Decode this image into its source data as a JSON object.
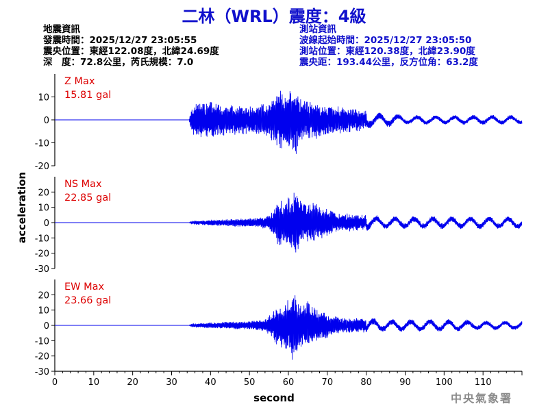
{
  "title": "二林（WRL）震度：4級",
  "quake_info": {
    "heading": "地震資訊",
    "origin_time": "發震時間：2025/12/27 23:05:55",
    "epicenter": "震央位置：東經122.08度，北緯24.69度",
    "depth_magnitude": "深　度：72.8公里，芮氏規模：7.0"
  },
  "station_info": {
    "heading": "測站資訊",
    "wave_start": "波線起始時間：2025/12/27 23:05:50",
    "station_location": "測站位置：東經120.38度，北緯23.90度",
    "distance_azimuth": "震央距：193.44公里，反方位角：63.2度"
  },
  "watermark": "中央氣象署",
  "colors": {
    "trace": "#0000ee",
    "label": "#dd0000",
    "title": "#1010cc",
    "text": "#000000"
  },
  "chart_data": {
    "type": "line",
    "xlabel": "second",
    "ylabel": "acceleration",
    "xlim": [
      0,
      120
    ],
    "xticks": [
      0,
      10,
      20,
      30,
      40,
      50,
      60,
      70,
      80,
      90,
      100,
      110
    ],
    "grid": false,
    "panels": [
      {
        "name": "Z",
        "label": "Z Max",
        "max_value": "15.81 gal",
        "ylim": [
          -20,
          20
        ],
        "yticks": [
          -20,
          -10,
          0,
          10
        ],
        "envelope": {
          "x": [
            0,
            34.5,
            35,
            36,
            40,
            45,
            50,
            55,
            57,
            58,
            59,
            60,
            61,
            62,
            63,
            65,
            68,
            70,
            75,
            78,
            80,
            82,
            84,
            86,
            90,
            95,
            100,
            110,
            120
          ],
          "amp": [
            0,
            0,
            6,
            8,
            8,
            7,
            6,
            8,
            12,
            14,
            12,
            13,
            14,
            15.8,
            11,
            9,
            8,
            7,
            6,
            5,
            4,
            3,
            3,
            3,
            2,
            2,
            2,
            2,
            2
          ]
        }
      },
      {
        "name": "NS",
        "label": "NS Max",
        "max_value": "22.85 gal",
        "ylim": [
          -30,
          30
        ],
        "yticks": [
          -30,
          -20,
          -10,
          0,
          10,
          20
        ],
        "envelope": {
          "x": [
            0,
            34.5,
            35,
            40,
            45,
            50,
            54,
            56,
            57,
            58,
            59,
            60,
            61,
            62,
            63,
            64,
            65,
            66,
            68,
            70,
            73,
            75,
            80,
            85,
            90,
            100,
            110,
            120
          ],
          "amp": [
            0,
            0,
            1,
            2,
            2.5,
            3,
            4,
            8,
            14,
            16,
            13,
            17,
            18,
            22.85,
            16,
            15,
            17,
            14,
            11,
            9,
            6,
            6,
            5,
            4,
            4,
            4,
            4,
            4
          ]
        }
      },
      {
        "name": "EW",
        "label": "EW Max",
        "max_value": "23.66 gal",
        "ylim": [
          -30,
          30
        ],
        "yticks": [
          -30,
          -20,
          -10,
          0,
          10,
          20
        ],
        "envelope": {
          "x": [
            0,
            34.5,
            35,
            40,
            45,
            50,
            54,
            56,
            57,
            58,
            59,
            60,
            61,
            62,
            63,
            64,
            65,
            66,
            68,
            70,
            73,
            75,
            80,
            85,
            90,
            100,
            110,
            120
          ],
          "amp": [
            0,
            0,
            1,
            2,
            2.5,
            3,
            4,
            9,
            15,
            14,
            17,
            18,
            23.66,
            19,
            15,
            14,
            16,
            13,
            10,
            8,
            6,
            5,
            5,
            4,
            4,
            4,
            3,
            3
          ]
        }
      }
    ]
  }
}
